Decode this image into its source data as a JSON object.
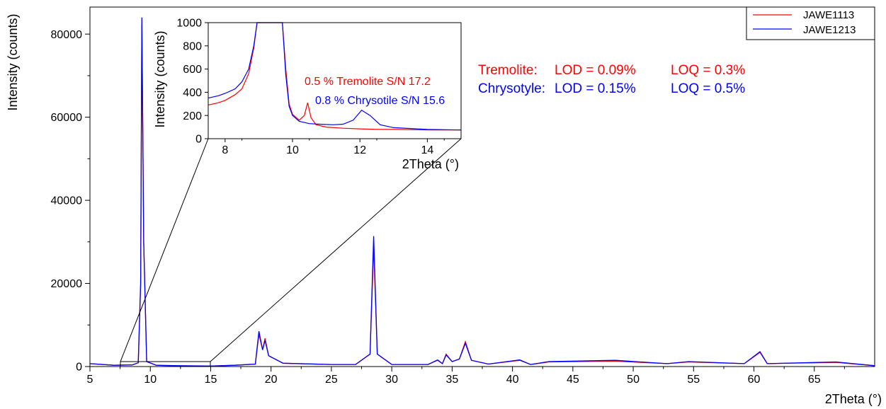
{
  "chart_data": [
    {
      "type": "line",
      "xlabel": "2Theta (°)",
      "ylabel": "Intensity (counts)",
      "xlim": [
        5,
        70
      ],
      "ylim": [
        0,
        86500
      ],
      "xticks": [
        5,
        10,
        15,
        20,
        25,
        30,
        35,
        40,
        45,
        50,
        55,
        60,
        65
      ],
      "yticks": [
        0,
        20000,
        40000,
        60000,
        80000
      ],
      "legend_position": "top-right",
      "series": [
        {
          "name": "JAWE1113",
          "color": "#ff0000",
          "x": [
            5,
            7,
            8.5,
            9.0,
            9.2,
            9.3,
            9.45,
            9.7,
            10.5,
            12,
            15,
            17,
            18.7,
            19.0,
            19.3,
            19.5,
            19.8,
            21,
            25,
            27,
            28.2,
            28.5,
            28.8,
            30,
            33,
            33.8,
            34.2,
            34.5,
            35,
            35.6,
            36.1,
            36.6,
            38,
            40.6,
            41.5,
            43,
            48.5,
            52.8,
            54.6,
            59.2,
            60.5,
            61.1,
            66.8,
            70
          ],
          "y": [
            700,
            300,
            400,
            900,
            20000,
            82500,
            30000,
            1200,
            300,
            150,
            120,
            300,
            600,
            7800,
            4000,
            6800,
            2600,
            800,
            500,
            500,
            3000,
            29000,
            3000,
            500,
            500,
            1500,
            700,
            3000,
            1200,
            1800,
            6000,
            1500,
            600,
            1500,
            500,
            1100,
            1300,
            700,
            1100,
            700,
            3400,
            700,
            1000,
            200
          ]
        },
        {
          "name": "JAWE1213",
          "color": "#0000ff",
          "x": [
            5,
            7,
            8.5,
            9.0,
            9.2,
            9.3,
            9.45,
            9.7,
            10.5,
            12,
            15,
            17,
            18.7,
            19.0,
            19.3,
            19.5,
            19.8,
            21,
            25,
            27,
            28.2,
            28.5,
            28.8,
            30,
            33,
            33.8,
            34.2,
            34.5,
            35,
            35.6,
            36.1,
            36.6,
            38,
            40.6,
            41.5,
            43,
            48.5,
            52.8,
            54.6,
            59.2,
            60.5,
            61.1,
            66.8,
            70
          ],
          "y": [
            700,
            300,
            400,
            900,
            20000,
            84000,
            30000,
            1200,
            300,
            220,
            120,
            300,
            600,
            8500,
            4000,
            6300,
            2600,
            800,
            500,
            500,
            3000,
            31400,
            3000,
            500,
            500,
            1600,
            700,
            2800,
            1200,
            1800,
            5600,
            1500,
            600,
            1600,
            500,
            1200,
            1500,
            700,
            1200,
            700,
            3600,
            700,
            1100,
            200
          ]
        }
      ]
    },
    {
      "type": "line",
      "xlabel": "2Theta (°)",
      "ylabel": "Intensity (counts)",
      "xlim": [
        7.5,
        15
      ],
      "ylim": [
        0,
        1000
      ],
      "xticks": [
        8,
        10,
        12,
        14
      ],
      "yticks": [
        0,
        200,
        400,
        600,
        800,
        1000
      ],
      "annotations": [
        {
          "text": "0.5 % Tremolite S/N 17.2",
          "color": "#ff0000"
        },
        {
          "text": "0.8 % Chrysotile S/N 15.6",
          "color": "#0000ff"
        }
      ],
      "series": [
        {
          "name": "JAWE1113",
          "color": "#ff0000",
          "x": [
            7.5,
            7.8,
            8.0,
            8.3,
            8.5,
            8.7,
            8.85,
            8.95,
            9.05,
            9.7,
            9.8,
            9.9,
            10.0,
            10.2,
            10.35,
            10.45,
            10.55,
            10.7,
            11.0,
            11.5,
            12.0,
            12.5,
            13.0,
            14.0,
            15.0
          ],
          "y": [
            290,
            310,
            330,
            380,
            430,
            560,
            780,
            1000,
            1000,
            1000,
            600,
            300,
            210,
            160,
            200,
            310,
            180,
            120,
            100,
            90,
            85,
            80,
            80,
            75,
            75
          ]
        },
        {
          "name": "JAWE1213",
          "color": "#0000ff",
          "x": [
            7.5,
            7.8,
            8.0,
            8.3,
            8.5,
            8.7,
            8.85,
            8.95,
            9.05,
            9.7,
            9.8,
            9.9,
            10.0,
            10.2,
            10.5,
            10.8,
            11.2,
            11.5,
            11.8,
            12.05,
            12.3,
            12.6,
            13.0,
            14.0,
            15.0
          ],
          "y": [
            350,
            370,
            390,
            430,
            490,
            600,
            800,
            1000,
            1000,
            1000,
            550,
            280,
            200,
            150,
            130,
            125,
            120,
            125,
            160,
            245,
            200,
            120,
            95,
            80,
            75
          ]
        }
      ]
    }
  ],
  "text_panel": {
    "tremolite_name": "Tremolite:",
    "tremolite_lod": "LOD = 0.09%",
    "tremolite_loq": "LOQ = 0.3%",
    "chrysotile_name": "Chrysotyle:",
    "chrysotile_lod": "LOD = 0.15%",
    "chrysotile_loq": "LOQ = 0.5%",
    "tremolite_color": "#ff0000",
    "chrysotile_color": "#0000ff"
  }
}
